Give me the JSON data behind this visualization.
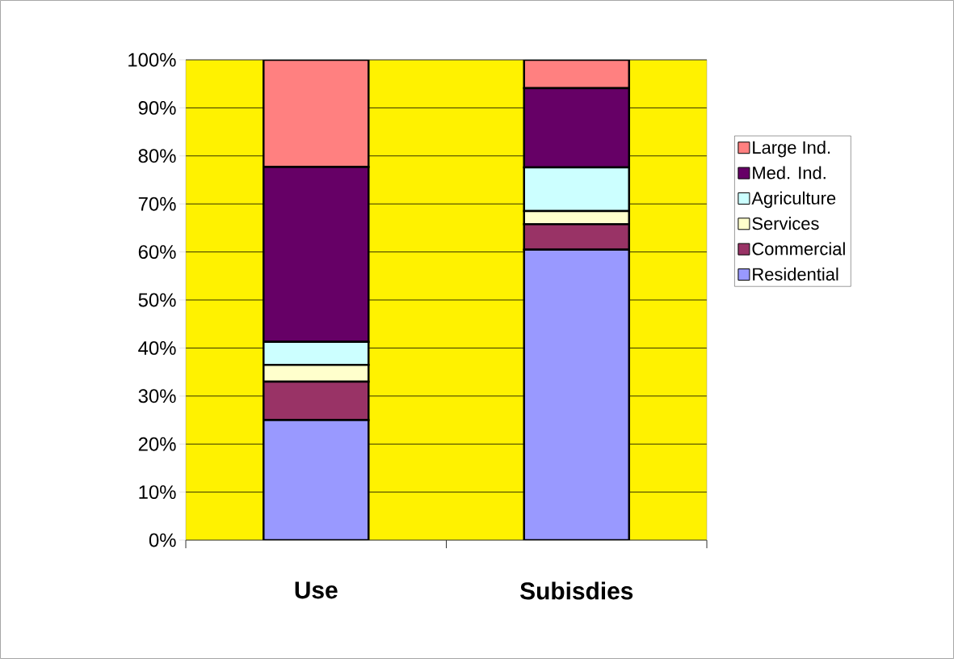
{
  "chart_data": {
    "type": "bar",
    "stacked": true,
    "categories": [
      "Use",
      "Subisdies"
    ],
    "series": [
      {
        "name": "Residential",
        "color": "#9999ff",
        "values": [
          25,
          60.5
        ]
      },
      {
        "name": "Commercial",
        "color": "#993366",
        "values": [
          8,
          5.3
        ]
      },
      {
        "name": "Services",
        "color": "#ffffcc",
        "values": [
          3.5,
          2.7
        ]
      },
      {
        "name": "Agriculture",
        "color": "#ccffff",
        "values": [
          4.8,
          9.1
        ]
      },
      {
        "name": "Med. Ind.",
        "color": "#660066",
        "values": [
          36.4,
          16.5
        ]
      },
      {
        "name": "Large Ind.",
        "color": "#ff8080",
        "values": [
          22.3,
          5.9
        ]
      }
    ],
    "ylim": [
      0,
      100
    ],
    "yticks": [
      {
        "value": 0,
        "label": "0%"
      },
      {
        "value": 10,
        "label": "10%"
      },
      {
        "value": 20,
        "label": "20%"
      },
      {
        "value": 30,
        "label": "30%"
      },
      {
        "value": 40,
        "label": "40%"
      },
      {
        "value": 50,
        "label": "50%"
      },
      {
        "value": 60,
        "label": "60%"
      },
      {
        "value": 70,
        "label": "70%"
      },
      {
        "value": 80,
        "label": "80%"
      },
      {
        "value": 90,
        "label": "90%"
      },
      {
        "value": 100,
        "label": "100%"
      }
    ],
    "grid": "y",
    "legend": "right"
  }
}
